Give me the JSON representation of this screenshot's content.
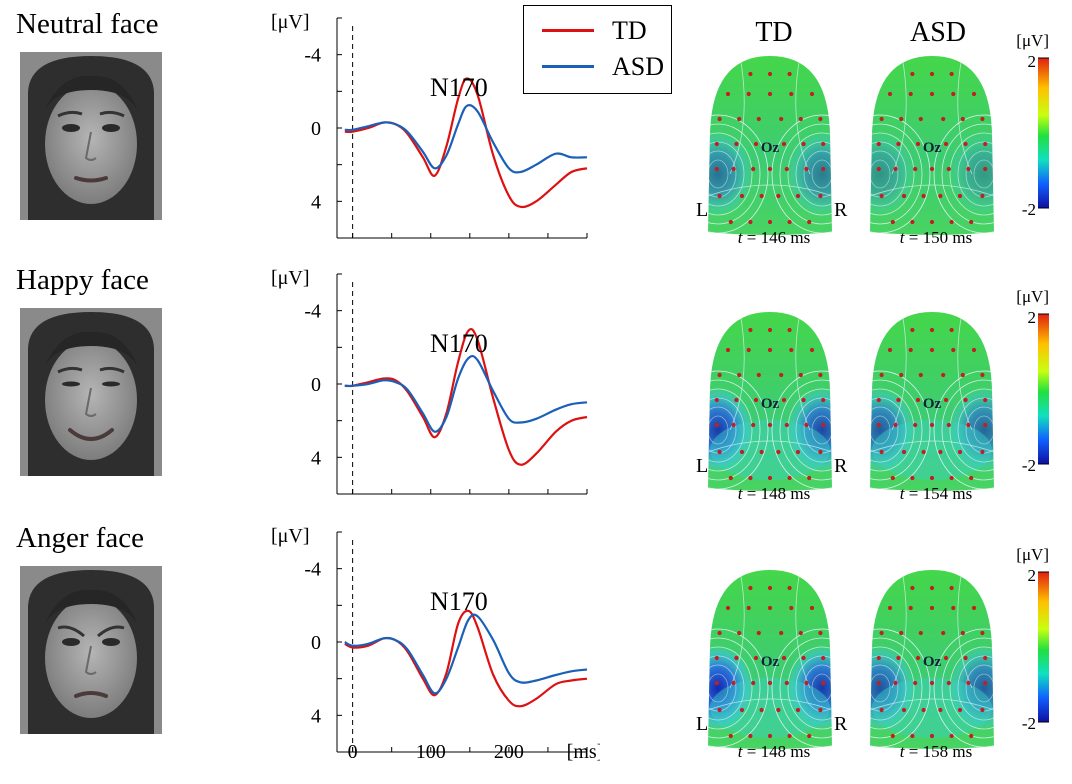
{
  "colors": {
    "td": "#dd1111",
    "asd": "#1a60b8"
  },
  "legend": {
    "td_label": "TD",
    "asd_label": "ASD"
  },
  "labels": {
    "y_unit": "[μV]",
    "x_unit": "[ms]",
    "component": "N170",
    "electrode": "Oz",
    "left": "L",
    "right": "R",
    "col_td": "TD",
    "col_asd": "ASD",
    "cbar_unit": "[μV]",
    "cbar_max": "2",
    "cbar_min": "-2",
    "t_var": "t",
    "t_unit": "ms"
  },
  "chart_data": [
    {
      "type": "line",
      "title": "Neutral face",
      "xlabel": "[ms]",
      "ylabel": "[μV]",
      "xlim": [
        -20,
        300
      ],
      "ylim": [
        6,
        -6
      ],
      "y_inverted": true,
      "xticks": [
        0,
        100,
        200
      ],
      "yticks": [
        -4,
        0,
        4
      ],
      "annotation": "N170",
      "latency_td": "146",
      "latency_asd": "150",
      "x": [
        -10,
        0,
        20,
        40,
        55,
        70,
        90,
        105,
        120,
        135,
        146,
        160,
        180,
        200,
        215,
        235,
        260,
        280,
        300
      ],
      "series": [
        {
          "name": "TD",
          "values": [
            0.2,
            0.2,
            0.0,
            -0.3,
            -0.2,
            0.3,
            1.6,
            2.6,
            1.0,
            -1.6,
            -2.7,
            -1.8,
            1.5,
            3.7,
            4.3,
            4.0,
            3.1,
            2.4,
            2.2
          ]
        },
        {
          "name": "ASD",
          "values": [
            0.1,
            0.1,
            -0.1,
            -0.3,
            -0.2,
            0.2,
            1.3,
            2.2,
            1.5,
            -0.2,
            -1.2,
            -0.9,
            0.8,
            2.2,
            2.4,
            2.0,
            1.4,
            1.6,
            1.6
          ]
        }
      ]
    },
    {
      "type": "line",
      "title": "Happy face",
      "xlabel": "[ms]",
      "ylabel": "[μV]",
      "xlim": [
        -20,
        300
      ],
      "ylim": [
        6,
        -6
      ],
      "y_inverted": true,
      "xticks": [
        0,
        100,
        200
      ],
      "yticks": [
        -4,
        0,
        4
      ],
      "annotation": "N170",
      "latency_td": "148",
      "latency_asd": "154",
      "x": [
        -10,
        0,
        20,
        40,
        55,
        70,
        90,
        105,
        120,
        135,
        148,
        160,
        180,
        200,
        215,
        235,
        260,
        280,
        300
      ],
      "series": [
        {
          "name": "TD",
          "values": [
            0.1,
            0.1,
            -0.1,
            -0.3,
            -0.2,
            0.4,
            1.8,
            2.9,
            1.6,
            -1.2,
            -2.9,
            -2.4,
            0.8,
            3.6,
            4.4,
            3.8,
            2.6,
            2.0,
            1.8
          ]
        },
        {
          "name": "ASD",
          "values": [
            0.1,
            0.1,
            0.0,
            -0.2,
            -0.1,
            0.3,
            1.6,
            2.6,
            1.8,
            -0.3,
            -1.4,
            -1.3,
            0.4,
            1.9,
            2.1,
            1.9,
            1.4,
            1.1,
            1.0
          ]
        }
      ]
    },
    {
      "type": "line",
      "title": "Anger face",
      "xlabel": "[ms]",
      "ylabel": "[μV]",
      "xlim": [
        -20,
        300
      ],
      "ylim": [
        6,
        -6
      ],
      "y_inverted": true,
      "xticks": [
        0,
        100,
        200
      ],
      "yticks": [
        -4,
        0,
        4
      ],
      "annotation": "N170",
      "latency_td": "148",
      "latency_asd": "158",
      "x": [
        -10,
        0,
        20,
        40,
        55,
        70,
        90,
        105,
        120,
        135,
        148,
        160,
        180,
        200,
        215,
        235,
        260,
        280,
        300
      ],
      "series": [
        {
          "name": "TD",
          "values": [
            0.1,
            0.3,
            0.2,
            -0.2,
            -0.1,
            0.5,
            2.0,
            2.9,
            1.7,
            -1.0,
            -1.7,
            -0.8,
            1.8,
            3.2,
            3.5,
            3.1,
            2.3,
            2.1,
            2.0
          ]
        },
        {
          "name": "ASD",
          "values": [
            0.0,
            0.2,
            0.1,
            -0.2,
            -0.1,
            0.4,
            1.8,
            2.8,
            2.0,
            0.3,
            -1.2,
            -1.4,
            -0.1,
            1.7,
            2.2,
            2.1,
            1.8,
            1.6,
            1.5
          ]
        }
      ]
    }
  ]
}
